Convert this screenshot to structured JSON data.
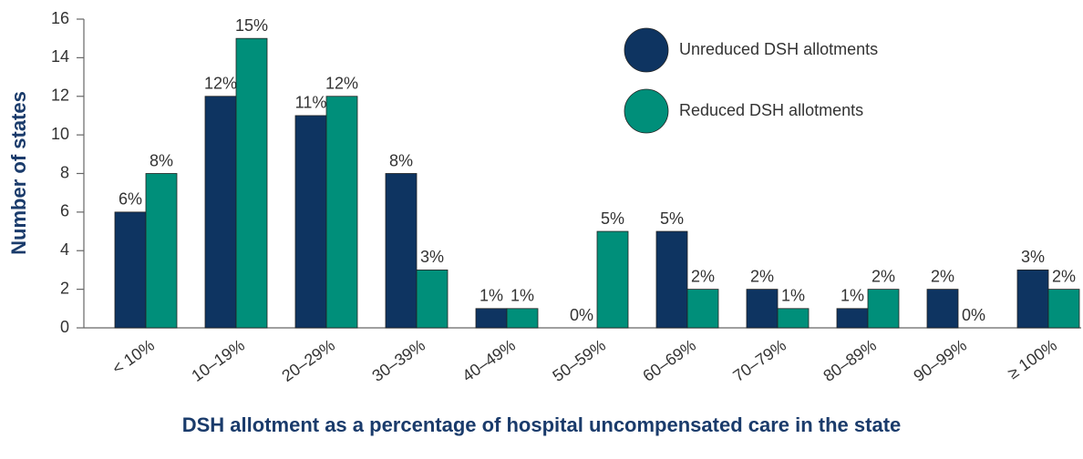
{
  "chart_data": {
    "type": "bar",
    "xlabel": "DSH allotment as a percentage of hospital uncompensated care in the state",
    "ylabel": "Number of states",
    "categories": [
      "< 10%",
      "10–19%",
      "20–29%",
      "30–39%",
      "40–49%",
      "50–59%",
      "60–69%",
      "70–79%",
      "80–89%",
      "90–99%",
      "≥ 100%"
    ],
    "series": [
      {
        "name": "Unreduced DSH allotments",
        "color": "#0e3461",
        "values": [
          6,
          12,
          11,
          8,
          1,
          0,
          5,
          2,
          1,
          2,
          3
        ],
        "value_labels": [
          "6%",
          "12%",
          "11%",
          "8%",
          "1%",
          "0%",
          "5%",
          "2%",
          "1%",
          "2%",
          "3%"
        ]
      },
      {
        "name": "Reduced DSH allotments",
        "color": "#008f7a",
        "values": [
          8,
          15,
          12,
          3,
          1,
          5,
          2,
          1,
          2,
          0,
          2
        ],
        "value_labels": [
          "8%",
          "15%",
          "12%",
          "3%",
          "1%",
          "5%",
          "2%",
          "1%",
          "2%",
          "0%",
          "2%"
        ]
      }
    ],
    "ylim": [
      0,
      16
    ],
    "yticks": [
      0,
      2,
      4,
      6,
      8,
      10,
      12,
      14,
      16
    ],
    "grid": false,
    "legend": "upper right"
  }
}
